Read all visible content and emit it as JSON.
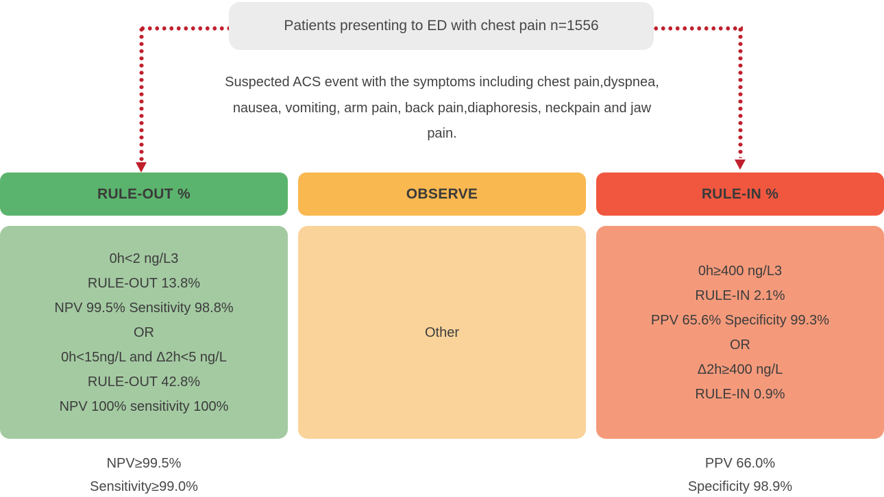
{
  "colors": {
    "top_box_bg": "#ececec",
    "arrow": "#c0202c",
    "rule_out_header_bg": "#5bb46d",
    "rule_out_body_bg": "#a4caa2",
    "observe_header_bg": "#f9b850",
    "observe_body_bg": "#fad39b",
    "rule_in_header_bg": "#f1573f",
    "rule_in_body_bg": "#f49a7b",
    "text": "#3f3f3f"
  },
  "top_box": {
    "label": "Patients presenting to ED with chest pain n=1556"
  },
  "description": {
    "line1": "Suspected ACS event with the symptoms including chest pain,dyspnea,",
    "line2": "nausea, vomiting, arm pain, back pain,diaphoresis, neckpain and jaw",
    "line3": "pain."
  },
  "columns": [
    {
      "id": "rule-out",
      "header": "RULE-OUT %",
      "body_lines": [
        "0h<2 ng/L3",
        "RULE-OUT 13.8%",
        "NPV 99.5% Sensitivity 98.8%",
        "OR",
        "0h<15ng/L and Δ2h<5 ng/L",
        "RULE-OUT 42.8%",
        "NPV 100% sensitivity 100%"
      ],
      "footer_lines": [
        "NPV≥99.5%",
        "Sensitivity≥99.0%"
      ]
    },
    {
      "id": "observe",
      "header": "OBSERVE",
      "body_lines": [
        "Other"
      ],
      "footer_lines": []
    },
    {
      "id": "rule-in",
      "header": "RULE-IN %",
      "body_lines": [
        "0h≥400 ng/L3",
        "RULE-IN 2.1%",
        "PPV 65.6% Specificity 99.3%",
        "OR",
        "Δ2h≥400 ng/L",
        "RULE-IN 0.9%"
      ],
      "footer_lines": [
        "PPV 66.0%",
        "Specificity 98.9%"
      ]
    }
  ]
}
